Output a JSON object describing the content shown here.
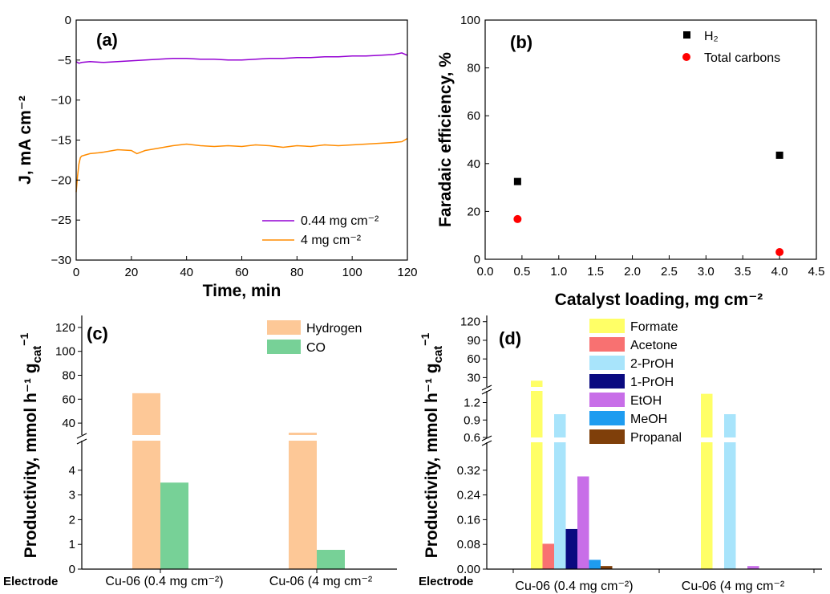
{
  "chart_data": [
    {
      "panel_label": "(a)",
      "type": "line",
      "xlabel": "Time, min",
      "ylabel": "J, mA cm⁻²",
      "xlim": [
        0,
        120
      ],
      "ylim": [
        -30,
        0
      ],
      "xticks": [
        "0",
        "20",
        "40",
        "60",
        "80",
        "100",
        "120"
      ],
      "yticks": [
        "0",
        "−5",
        "−10",
        "−15",
        "−20",
        "−25",
        "−30"
      ],
      "legend_position": "bottom-right",
      "series": [
        {
          "name": "0.44 mg cm⁻²",
          "color": "#9400d3",
          "x": [
            0,
            1,
            2,
            5,
            10,
            15,
            20,
            25,
            30,
            35,
            40,
            45,
            50,
            55,
            60,
            65,
            70,
            75,
            80,
            85,
            90,
            95,
            100,
            105,
            110,
            115,
            118,
            120
          ],
          "y": [
            -5.2,
            -5.4,
            -5.3,
            -5.2,
            -5.3,
            -5.2,
            -5.1,
            -5.0,
            -4.9,
            -4.8,
            -4.8,
            -4.9,
            -4.9,
            -5.0,
            -5.0,
            -4.9,
            -4.8,
            -4.8,
            -4.7,
            -4.7,
            -4.6,
            -4.6,
            -4.5,
            -4.5,
            -4.4,
            -4.3,
            -4.1,
            -4.4
          ]
        },
        {
          "name": "4 mg cm⁻²",
          "color": "#ff8c00",
          "x": [
            0,
            0.5,
            1,
            1.5,
            2,
            3,
            5,
            8,
            10,
            15,
            20,
            22,
            25,
            30,
            35,
            40,
            45,
            50,
            55,
            60,
            65,
            70,
            75,
            80,
            85,
            90,
            95,
            100,
            105,
            110,
            115,
            118,
            120
          ],
          "y": [
            -21.5,
            -19.5,
            -18.0,
            -17.2,
            -17.0,
            -16.9,
            -16.7,
            -16.6,
            -16.5,
            -16.2,
            -16.3,
            -16.7,
            -16.3,
            -16.0,
            -15.7,
            -15.5,
            -15.7,
            -15.8,
            -15.7,
            -15.8,
            -15.6,
            -15.7,
            -15.9,
            -15.7,
            -15.8,
            -15.6,
            -15.7,
            -15.6,
            -15.5,
            -15.4,
            -15.3,
            -15.2,
            -14.8
          ]
        }
      ]
    },
    {
      "panel_label": "(b)",
      "type": "scatter",
      "xlabel": "Catalyst loading, mg cm⁻²",
      "ylabel": "Faradaic efficiency, %",
      "xlim": [
        0,
        4.5
      ],
      "ylim": [
        0,
        100
      ],
      "xticks": [
        "0.0",
        "0.5",
        "1.0",
        "1.5",
        "2.0",
        "2.5",
        "3.0",
        "3.5",
        "4.0",
        "4.5"
      ],
      "yticks": [
        "0",
        "20",
        "40",
        "60",
        "80",
        "100"
      ],
      "legend_position": "top-right",
      "series": [
        {
          "name": "H₂",
          "color": "#000000",
          "marker": "square",
          "x": [
            0.44,
            4.0
          ],
          "y": [
            32.5,
            43.5
          ]
        },
        {
          "name": "Total carbons",
          "color": "#ff0000",
          "marker": "circle",
          "x": [
            0.44,
            4.0
          ],
          "y": [
            16.8,
            3.0
          ]
        }
      ]
    },
    {
      "panel_label": "(c)",
      "type": "bar",
      "ylabel": "Productivity, mmol h⁻¹ g",
      "ylabel_subscript": "cat",
      "ylabel_superscript": "−1",
      "axis_break": true,
      "lower_range": [
        0,
        5
      ],
      "upper_range": [
        30,
        130
      ],
      "upper_yticks": [
        "40",
        "60",
        "80",
        "100",
        "120"
      ],
      "lower_yticks": [
        "0",
        "1",
        "2",
        "3",
        "4"
      ],
      "row_label": "Electrode",
      "categories": [
        "Cu-06 (0.4 mg cm⁻²)",
        "Cu-06 (4 mg cm⁻²"
      ],
      "legend_position": "top-right",
      "series": [
        {
          "name": "Hydrogen",
          "color": "#fdc897",
          "values": [
            65,
            32
          ]
        },
        {
          "name": "CO",
          "color": "#77d197",
          "values": [
            3.5,
            0.78
          ]
        }
      ]
    },
    {
      "panel_label": "(d)",
      "type": "bar",
      "ylabel": "Productivity, mmol h⁻¹ g",
      "ylabel_subscript": "cat",
      "ylabel_superscript": "−1",
      "axis_break": true,
      "lower_range": [
        0,
        0.4
      ],
      "middle_range": [
        0.6,
        1.4
      ],
      "upper_range": [
        15,
        130
      ],
      "upper_yticks": [
        "30",
        "60",
        "90",
        "120"
      ],
      "middle_yticks": [
        "0.6",
        "0.9",
        "1.2"
      ],
      "lower_yticks": [
        "0.00",
        "0.08",
        "0.16",
        "0.24",
        "0.32"
      ],
      "row_label": "Electrode",
      "categories": [
        "Cu-06 (0.4 mg cm⁻²)",
        "Cu-06 (4 mg cm⁻²"
      ],
      "legend_position": "top-center",
      "series": [
        {
          "name": "Formate",
          "color": "#ffff66",
          "values": [
            25,
            1.35
          ]
        },
        {
          "name": "Acetone",
          "color": "#f87171",
          "values": [
            0.082,
            0
          ]
        },
        {
          "name": "2-PrOH",
          "color": "#a8e4fb",
          "values": [
            1.0,
            1.0
          ]
        },
        {
          "name": "1-PrOH",
          "color": "#0a0a80",
          "values": [
            0.13,
            0
          ]
        },
        {
          "name": "EtOH",
          "color": "#c86ee8",
          "values": [
            0.3,
            0.01
          ]
        },
        {
          "name": "MeOH",
          "color": "#1e9cf0",
          "values": [
            0.03,
            0
          ]
        },
        {
          "name": "Propanal",
          "color": "#7f3f0a",
          "values": [
            0.01,
            0
          ]
        }
      ]
    }
  ]
}
